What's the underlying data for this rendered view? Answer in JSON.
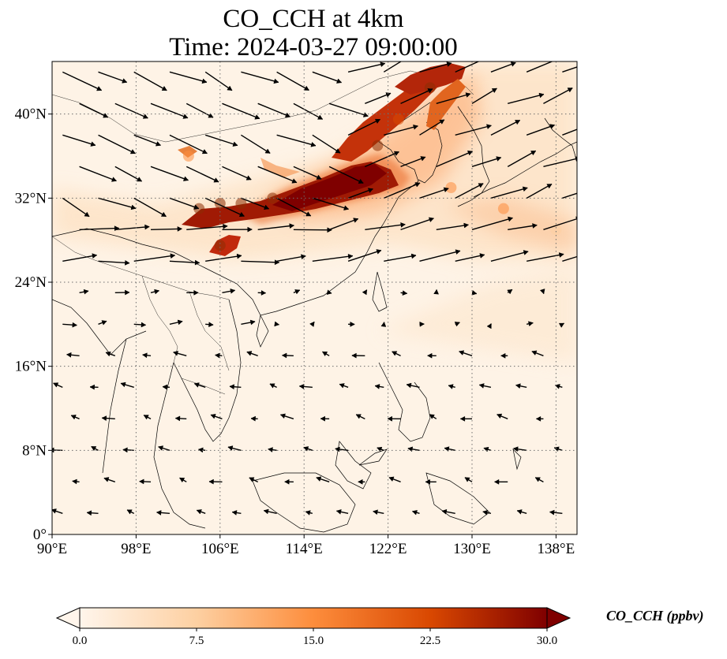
{
  "chart_data": {
    "type": "heatmap",
    "title": "CO_CCH at 4km",
    "subtitle": "Time: 2024-03-27 09:00:00",
    "map": {
      "lon_range": [
        90,
        140
      ],
      "lat_range": [
        0,
        45
      ],
      "x_ticks": [
        {
          "value": 90,
          "label": "90°E"
        },
        {
          "value": 98,
          "label": "98°E"
        },
        {
          "value": 106,
          "label": "106°E"
        },
        {
          "value": 114,
          "label": "114°E"
        },
        {
          "value": 122,
          "label": "122°E"
        },
        {
          "value": 130,
          "label": "130°E"
        },
        {
          "value": 138,
          "label": "138°E"
        }
      ],
      "y_ticks": [
        {
          "value": 0,
          "label": "0°"
        },
        {
          "value": 8,
          "label": "8°N"
        },
        {
          "value": 16,
          "label": "16°N"
        },
        {
          "value": 24,
          "label": "24°N"
        },
        {
          "value": 32,
          "label": "32°N"
        },
        {
          "value": 40,
          "label": "40°N"
        }
      ],
      "grid": "dotted"
    },
    "plume": [
      {
        "lon": 104,
        "lat": 31.0,
        "value": 26
      },
      {
        "lon": 106,
        "lat": 31.5,
        "value": 24
      },
      {
        "lon": 108,
        "lat": 31.5,
        "value": 22
      },
      {
        "lon": 111,
        "lat": 32.0,
        "value": 25
      },
      {
        "lon": 114,
        "lat": 32.5,
        "value": 28
      },
      {
        "lon": 117,
        "lat": 33.0,
        "value": 30
      },
      {
        "lon": 119,
        "lat": 34.5,
        "value": 28
      },
      {
        "lon": 121,
        "lat": 37.0,
        "value": 22
      },
      {
        "lon": 123,
        "lat": 39.5,
        "value": 20
      },
      {
        "lon": 126,
        "lat": 42.5,
        "value": 26
      },
      {
        "lon": 106,
        "lat": 27.5,
        "value": 24
      },
      {
        "lon": 103,
        "lat": 36.0,
        "value": 14
      },
      {
        "lon": 128,
        "lat": 33.0,
        "value": 12
      },
      {
        "lon": 133,
        "lat": 31.0,
        "value": 10
      },
      {
        "lon": 138,
        "lat": 29.0,
        "value": 8
      }
    ],
    "wind_field": "vectors",
    "colorbar": {
      "label": "CO_CCH (ppbv)",
      "min": 0.0,
      "max": 30.0,
      "extend": "both",
      "ticks": [
        "0.0",
        "7.5",
        "15.0",
        "22.5",
        "30.0"
      ],
      "colors": [
        "#fff5eb",
        "#fdd0a2",
        "#fd8d3c",
        "#d94801",
        "#8c2d04",
        "#7f0000"
      ]
    }
  }
}
